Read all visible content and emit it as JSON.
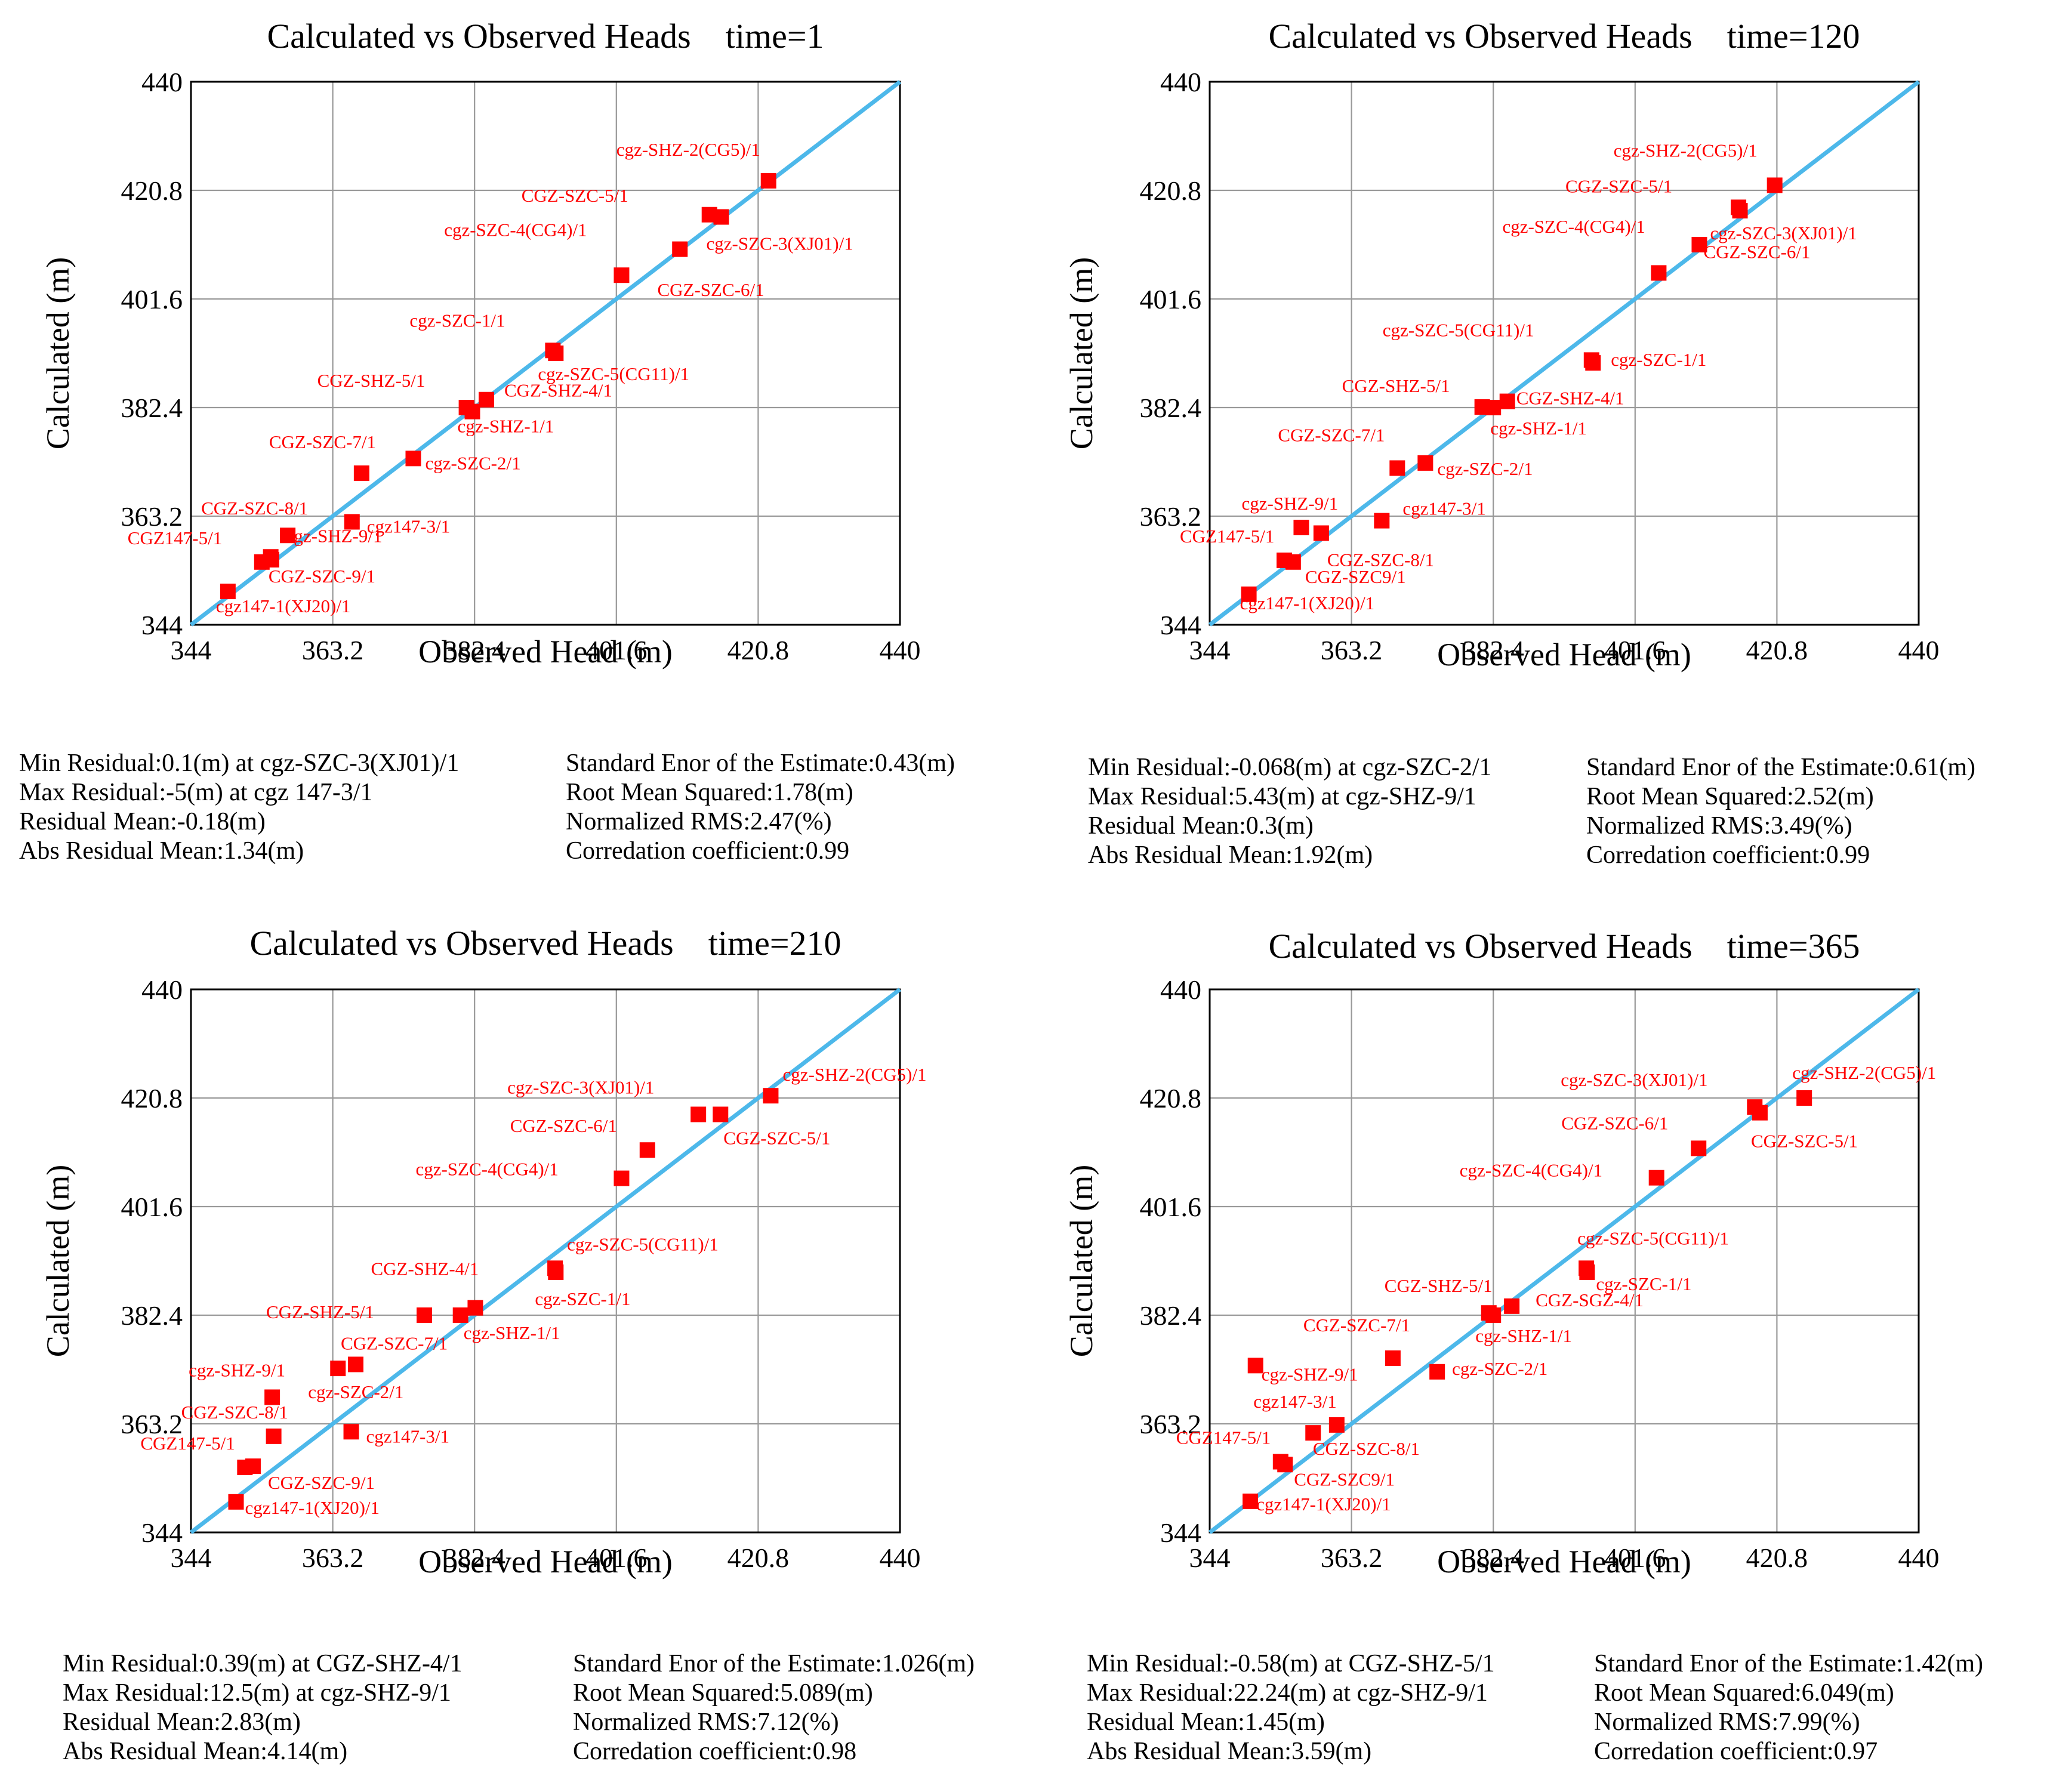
{
  "chart_data": [
    {
      "type": "scatter",
      "title": "Calculated vs Observed Heads    time=1",
      "xlabel": "Observed Head (m)",
      "ylabel": "Calculated (m)",
      "xlim": [
        344,
        440
      ],
      "ylim": [
        344,
        440
      ],
      "xticks": [
        "344",
        "363.2",
        "382.4",
        "401.6",
        "420.8",
        "440"
      ],
      "yticks": [
        "344",
        "363.2",
        "382.4",
        "401.6",
        "420.8",
        "440"
      ],
      "grid": true,
      "reference_line": "1:1",
      "points": [
        {
          "label": "cgz-SHZ-2(CG5)/1",
          "x": 422.2,
          "y": 422.5
        },
        {
          "label": "CGZ-SZC-5/1",
          "x": 414.2,
          "y": 416.5
        },
        {
          "label": "cgz-SZC-3(XJ01)/1",
          "x": 415.8,
          "y": 416.1
        },
        {
          "label": "cgz-SZC-4(CG4)/1",
          "x": 410.2,
          "y": 410.4
        },
        {
          "label": "CGZ-SZC-6/1",
          "x": 402.3,
          "y": 405.8
        },
        {
          "label": "cgz-SZC-1/1",
          "x": 393.0,
          "y": 392.5
        },
        {
          "label": "cgz-SZC-5(CG11)/1",
          "x": 393.4,
          "y": 392.0
        },
        {
          "label": "CGZ-SHZ-5/1",
          "x": 381.3,
          "y": 382.4
        },
        {
          "label": "CGZ-SHZ-4/1",
          "x": 384.0,
          "y": 383.8
        },
        {
          "label": "cgz-SHZ-1/1",
          "x": 382.1,
          "y": 381.7
        },
        {
          "label": "CGZ-SZC-7/1",
          "x": 367.1,
          "y": 370.8
        },
        {
          "label": "cgz-SZC-2/1",
          "x": 374.1,
          "y": 373.4
        },
        {
          "label": "cgz147-3/1",
          "x": 365.8,
          "y": 362.2
        },
        {
          "label": "CGZ-SZC-8/1",
          "x": 357.1,
          "y": 359.8
        },
        {
          "label": "cgz-SHZ-9/1",
          "x": 354.8,
          "y": 356.0
        },
        {
          "label": "CGZ147-5/1",
          "x": 353.6,
          "y": 355.1
        },
        {
          "label": "CGZ-SZC-9/1",
          "x": 354.9,
          "y": 355.5
        },
        {
          "label": "cgz147-1(XJ20)/1",
          "x": 349.0,
          "y": 349.9
        }
      ]
    },
    {
      "type": "scatter",
      "title": "Calculated vs Observed Heads    time=120",
      "xlabel": "Observed Head (m)",
      "ylabel": "Calculated (m)",
      "xlim": [
        344,
        440
      ],
      "ylim": [
        344,
        440
      ],
      "xticks": [
        "344",
        "363.2",
        "382.4",
        "401.6",
        "420.8",
        "440"
      ],
      "yticks": [
        "344",
        "363.2",
        "382.4",
        "401.6",
        "420.8",
        "440"
      ],
      "grid": true,
      "reference_line": "1:1",
      "points": [
        {
          "label": "cgz-SHZ-2(CG5)/1",
          "x": 420.5,
          "y": 421.7
        },
        {
          "label": "CGZ-SZC-5/1",
          "x": 415.6,
          "y": 417.8
        },
        {
          "label": "cgz-SZC-3(XJ01)/1",
          "x": 415.8,
          "y": 417.2
        },
        {
          "label": "cgz-SZC-4(CG4)/1",
          "x": 410.3,
          "y": 411.2
        },
        {
          "label": "CGZ-SZC-6/1",
          "x": 404.8,
          "y": 406.2
        },
        {
          "label": "cgz-SZC-5(CG11)/1",
          "x": 395.7,
          "y": 390.8
        },
        {
          "label": "cgz-SZC-1/1",
          "x": 395.9,
          "y": 390.3
        },
        {
          "label": "CGZ-SHZ-5/1",
          "x": 380.9,
          "y": 382.5
        },
        {
          "label": "CGZ-SHZ-4/1",
          "x": 384.3,
          "y": 383.5
        },
        {
          "label": "cgz-SHZ-1/1",
          "x": 382.4,
          "y": 382.4
        },
        {
          "label": "CGZ-SZC-7/1",
          "x": 369.4,
          "y": 371.7
        },
        {
          "label": "cgz-SZC-2/1",
          "x": 373.2,
          "y": 372.6
        },
        {
          "label": "cgz147-3/1",
          "x": 367.3,
          "y": 362.4
        },
        {
          "label": "cgz-SHZ-9/1",
          "x": 356.4,
          "y": 361.2
        },
        {
          "label": "CGZ-SZC-8/1",
          "x": 359.1,
          "y": 360.2
        },
        {
          "label": "CGZ147-5/1",
          "x": 354.1,
          "y": 355.4
        },
        {
          "label": "CGZ-SZC9/1",
          "x": 355.3,
          "y": 355.1
        },
        {
          "label": "cgz147-1(XJ20)/1",
          "x": 349.3,
          "y": 349.4
        }
      ]
    },
    {
      "type": "scatter",
      "title": "Calculated vs Observed Heads    time=210",
      "xlabel": "Observed Head (m)",
      "ylabel": "Calculated (m)",
      "xlim": [
        344,
        440
      ],
      "ylim": [
        344,
        440
      ],
      "xticks": [
        "344",
        "363.2",
        "382.4",
        "401.6",
        "420.8",
        "440"
      ],
      "yticks": [
        "344",
        "363.2",
        "382.4",
        "401.6",
        "420.8",
        "440"
      ],
      "grid": true,
      "reference_line": "1:1",
      "points": [
        {
          "label": "cgz-SHZ-2(CG5)/1",
          "x": 422.5,
          "y": 421.2
        },
        {
          "label": "CGZ-SZC-5/1",
          "x": 415.7,
          "y": 417.9
        },
        {
          "label": "cgz-SZC-3(XJ01)/1",
          "x": 412.7,
          "y": 417.9
        },
        {
          "label": "CGZ-SZC-6/1",
          "x": 405.8,
          "y": 411.6
        },
        {
          "label": "cgz-SZC-4(CG4)/1",
          "x": 402.3,
          "y": 406.6
        },
        {
          "label": "cgz-SZC-5(CG11)/1",
          "x": 393.3,
          "y": 390.7
        },
        {
          "label": "cgz-SZC-1/1",
          "x": 393.4,
          "y": 390.0
        },
        {
          "label": "CGZ-SHZ-4/1",
          "x": 382.5,
          "y": 383.7
        },
        {
          "label": "CGZ-SHZ-5/1",
          "x": 375.6,
          "y": 382.4
        },
        {
          "label": "cgz-SHZ-1/1",
          "x": 380.5,
          "y": 382.4
        },
        {
          "label": "CGZ-SZC-7/1",
          "x": 366.3,
          "y": 373.7
        },
        {
          "label": "cgz-SZC-2/1",
          "x": 363.9,
          "y": 373.0
        },
        {
          "label": "cgz-SHZ-9/1",
          "x": 355.0,
          "y": 367.9
        },
        {
          "label": "cgz147-3/1",
          "x": 365.7,
          "y": 361.8
        },
        {
          "label": "CGZ-SZC-8/1",
          "x": 355.2,
          "y": 361.0
        },
        {
          "label": "CGZ147-5/1",
          "x": 351.3,
          "y": 355.5
        },
        {
          "label": "CGZ-SZC-9/1",
          "x": 352.4,
          "y": 355.7
        },
        {
          "label": "cgz147-1(XJ20)/1",
          "x": 350.1,
          "y": 349.4
        }
      ]
    },
    {
      "type": "scatter",
      "title": "Calculated vs Observed Heads    time=365",
      "xlabel": "Observed Head (m)",
      "ylabel": "Calculated (m)",
      "xlim": [
        344,
        440
      ],
      "ylim": [
        344,
        440
      ],
      "xticks": [
        "344",
        "363.2",
        "382.4",
        "401.6",
        "420.8",
        "440"
      ],
      "yticks": [
        "344",
        "363.2",
        "382.4",
        "401.6",
        "420.8",
        "440"
      ],
      "grid": true,
      "reference_line": "1:1",
      "points": [
        {
          "label": "cgz-SHZ-2(CG5)/1",
          "x": 424.5,
          "y": 420.8
        },
        {
          "label": "cgz-SZC-3(XJ01)/1",
          "x": 417.8,
          "y": 419.2
        },
        {
          "label": "CGZ-SZC-5/1",
          "x": 418.5,
          "y": 418.2
        },
        {
          "label": "CGZ-SZC-6/1",
          "x": 410.2,
          "y": 411.9
        },
        {
          "label": "cgz-SZC-4(CG4)/1",
          "x": 404.5,
          "y": 406.7
        },
        {
          "label": "cgz-SZC-5(CG11)/1",
          "x": 395.0,
          "y": 390.7
        },
        {
          "label": "cgz-SZC-1/1",
          "x": 395.1,
          "y": 390.0
        },
        {
          "label": "CGZ-SHZ-5/1",
          "x": 381.8,
          "y": 382.8
        },
        {
          "label": "CGZ-SGZ-4/1",
          "x": 384.9,
          "y": 384.0
        },
        {
          "label": "cgz-SHZ-1/1",
          "x": 382.4,
          "y": 382.4
        },
        {
          "label": "CGZ-SZC-7/1",
          "x": 368.8,
          "y": 374.8
        },
        {
          "label": "cgz-SZC-2/1",
          "x": 374.8,
          "y": 372.4
        },
        {
          "label": "cgz-SHZ-9/1",
          "x": 350.2,
          "y": 373.5
        },
        {
          "label": "cgz147-3/1",
          "x": 358.0,
          "y": 361.6
        },
        {
          "label": "CGZ-SZC-8/1",
          "x": 361.2,
          "y": 363.0
        },
        {
          "label": "CGZ147-5/1",
          "x": 353.6,
          "y": 356.5
        },
        {
          "label": "CGZ-SZC9/1",
          "x": 354.2,
          "y": 356.0
        },
        {
          "label": "cgz147-1(XJ20)/1",
          "x": 349.5,
          "y": 349.5
        }
      ]
    }
  ],
  "stats": [
    {
      "left": [
        "Min Residual:0.1(m) at cgz-SZC-3(XJ01)/1",
        "Max Residual:-5(m) at cgz 147-3/1",
        "Residual Mean:-0.18(m)",
        "Abs Residual Mean:1.34(m)"
      ],
      "right": [
        "Standard Enor of the Estimate:0.43(m)",
        "Root Mean Squared:1.78(m)",
        "Normalized RMS:2.47(%)",
        "Corredation coefficient:0.99"
      ]
    },
    {
      "left": [
        "Min Residual:-0.068(m) at cgz-SZC-2/1",
        "Max Residual:5.43(m) at cgz-SHZ-9/1",
        "Residual Mean:0.3(m)",
        "Abs Residual Mean:1.92(m)"
      ],
      "right": [
        "Standard Enor of the Estimate:0.61(m)",
        "Root Mean Squared:2.52(m)",
        "Normalized RMS:3.49(%)",
        "Corredation coefficient:0.99"
      ]
    },
    {
      "left": [
        "Min Residual:0.39(m) at CGZ-SHZ-4/1",
        "Max Residual:12.5(m) at cgz-SHZ-9/1",
        "Residual Mean:2.83(m)",
        "Abs Residual Mean:4.14(m)"
      ],
      "right": [
        "Standard Enor of the Estimate:1.026(m)",
        "Root Mean Squared:5.089(m)",
        "Normalized RMS:7.12(%)",
        "Corredation coefficient:0.98"
      ]
    },
    {
      "left": [
        "Min Residual:-0.58(m) at CGZ-SHZ-5/1",
        "Max Residual:22.24(m) at cgz-SHZ-9/1",
        "Residual Mean:1.45(m)",
        "Abs Residual Mean:3.59(m)"
      ],
      "right": [
        "Standard Enor of the Estimate:1.42(m)",
        "Root Mean Squared:6.049(m)",
        "Normalized RMS:7.99(%)",
        "Corredation coefficient:0.97"
      ]
    }
  ],
  "colors": {
    "marker": "#ff0000",
    "label": "#ff0000",
    "reference_line": "#4db8ea",
    "grid": "#999999",
    "axes": "#000000"
  }
}
